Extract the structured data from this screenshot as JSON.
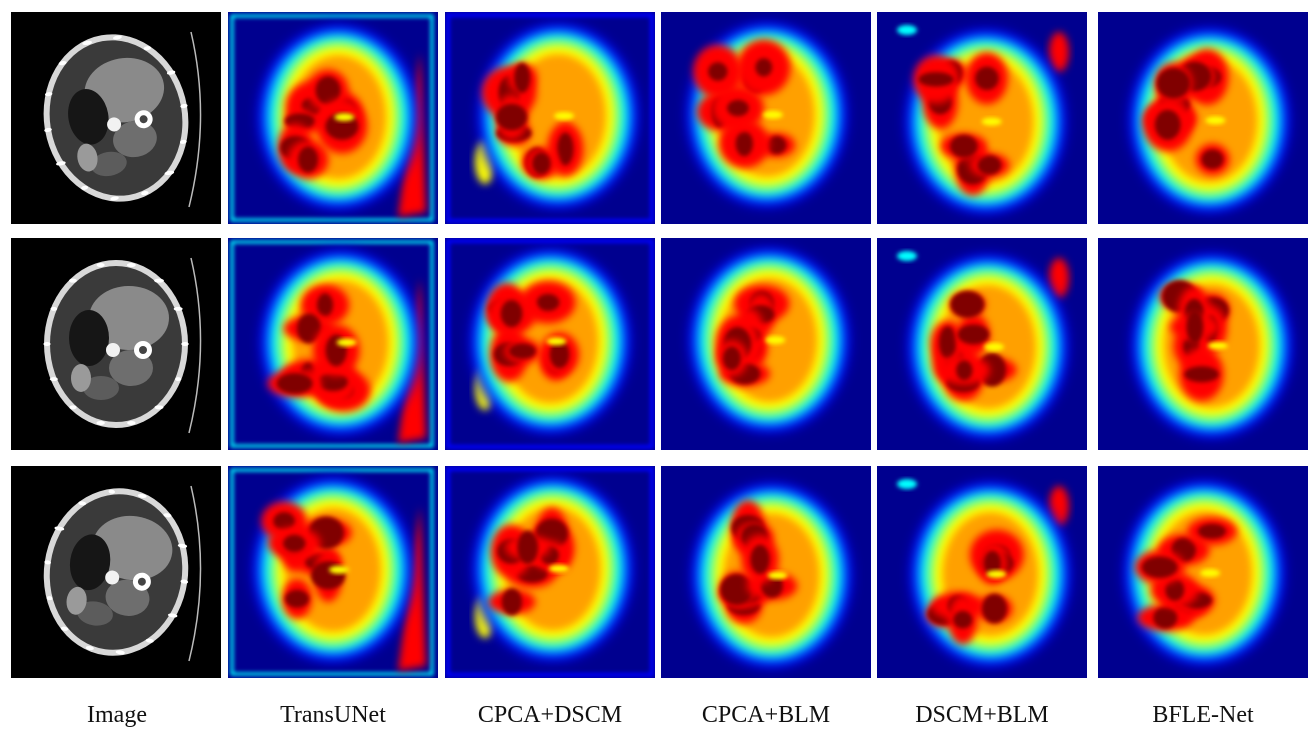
{
  "figure": {
    "columns": [
      {
        "label": "Image",
        "kind": "ct-scan"
      },
      {
        "label": "TransUNet",
        "kind": "heatmap"
      },
      {
        "label": "CPCA+DSCM",
        "kind": "heatmap"
      },
      {
        "label": "CPCA+BLM",
        "kind": "heatmap"
      },
      {
        "label": "DSCM+BLM",
        "kind": "heatmap"
      },
      {
        "label": "BFLE-Net",
        "kind": "heatmap"
      }
    ],
    "row_count": 3,
    "colormap": [
      "#00008f",
      "#0000ff",
      "#00ffff",
      "#ffff00",
      "#ff0000",
      "#800000"
    ]
  }
}
